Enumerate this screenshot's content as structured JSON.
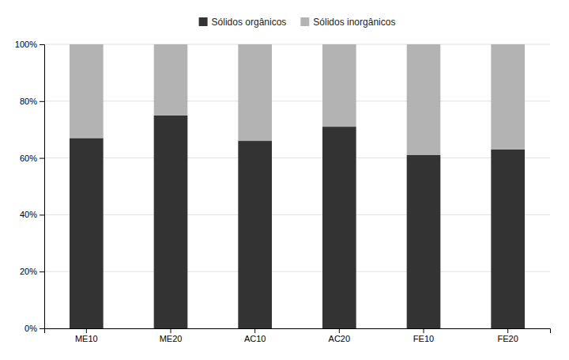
{
  "chart_data": {
    "type": "bar",
    "stacked": true,
    "categories": [
      "ME10",
      "ME20",
      "AC10",
      "AC20",
      "FE10",
      "FE20"
    ],
    "series": [
      {
        "name": "Sólidos orgânicos",
        "color": "#333333",
        "values": [
          67,
          75,
          66,
          71,
          61,
          63
        ]
      },
      {
        "name": "Sólidos inorgânicos",
        "color": "#b3b3b3",
        "values": [
          33,
          25,
          34,
          29,
          39,
          37
        ]
      }
    ],
    "ylim": [
      0,
      100
    ],
    "yticks": [
      {
        "value": 0,
        "label": "0%"
      },
      {
        "value": 20,
        "label": "20%"
      },
      {
        "value": 40,
        "label": "40%"
      },
      {
        "value": 60,
        "label": "60%"
      },
      {
        "value": 80,
        "label": "80%"
      },
      {
        "value": 100,
        "label": "100%"
      }
    ],
    "grid": true,
    "legend": "top"
  }
}
